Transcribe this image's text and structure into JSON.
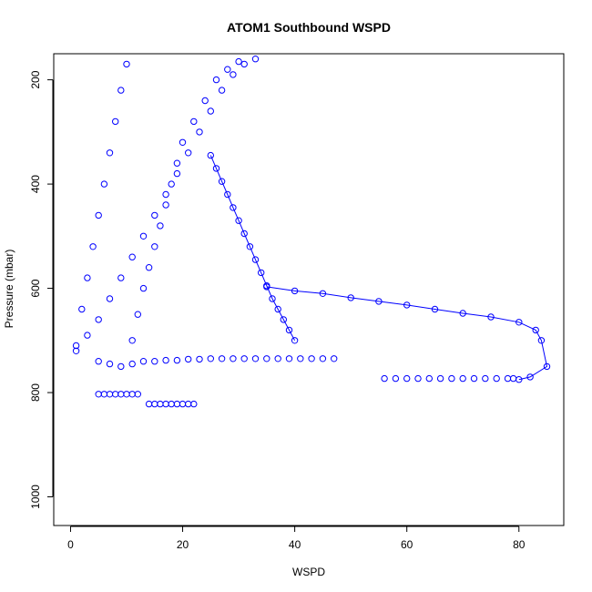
{
  "chart_data": {
    "type": "scatter",
    "title": "ATOM1 Southbound WSPD",
    "xlabel": "WSPD",
    "ylabel": "Pressure (mbar)",
    "xlim": [
      -3,
      88
    ],
    "ylim": [
      1055,
      150
    ],
    "y_reversed": true,
    "x_ticks": [
      "0",
      "20",
      "40",
      "60",
      "80"
    ],
    "y_ticks": [
      "200",
      "400",
      "600",
      "800",
      "1000"
    ],
    "marker": "open-circle",
    "color": "#0000ff",
    "grid": false,
    "legend": "none",
    "series": [
      {
        "style": "points",
        "x": [
          1,
          2,
          3,
          4,
          5,
          6,
          7,
          8,
          9,
          10,
          11,
          12,
          13,
          14,
          15,
          16,
          17,
          18,
          19,
          20,
          22,
          24,
          26,
          28,
          30,
          1,
          3,
          5,
          7,
          9,
          11,
          13,
          15,
          17,
          19,
          21,
          23,
          25,
          27,
          29,
          31,
          33
        ],
        "y": [
          710,
          640,
          580,
          520,
          460,
          400,
          340,
          280,
          220,
          170,
          700,
          650,
          600,
          560,
          520,
          480,
          440,
          400,
          360,
          320,
          280,
          240,
          200,
          180,
          165,
          720,
          690,
          660,
          620,
          580,
          540,
          500,
          460,
          420,
          380,
          340,
          300,
          260,
          220,
          190,
          170,
          160
        ]
      },
      {
        "style": "line-with-points",
        "x": [
          25,
          26,
          27,
          28,
          29,
          30,
          31,
          32,
          33,
          34,
          35,
          36,
          37,
          38,
          39,
          40
        ],
        "y": [
          345,
          370,
          395,
          420,
          445,
          470,
          495,
          520,
          545,
          570,
          595,
          620,
          640,
          660,
          680,
          700
        ]
      },
      {
        "style": "line-with-points",
        "x": [
          35,
          40,
          45,
          50,
          55,
          60,
          65,
          70,
          75,
          80,
          83,
          84,
          85,
          82,
          80
        ],
        "y": [
          597,
          605,
          610,
          618,
          625,
          632,
          640,
          648,
          655,
          665,
          680,
          700,
          750,
          770,
          775
        ]
      },
      {
        "style": "points",
        "x": [
          56,
          58,
          60,
          62,
          64,
          66,
          68,
          70,
          72,
          74,
          76,
          78,
          79
        ],
        "y": [
          773,
          773,
          773,
          773,
          773,
          773,
          773,
          773,
          773,
          773,
          773,
          773,
          773
        ]
      },
      {
        "style": "points",
        "x": [
          5,
          7,
          9,
          11,
          13,
          15,
          17,
          19,
          21,
          23,
          25,
          27,
          29,
          31,
          33,
          35,
          37,
          39,
          41,
          43,
          45,
          47
        ],
        "y": [
          740,
          745,
          750,
          745,
          740,
          740,
          738,
          738,
          736,
          736,
          735,
          735,
          735,
          735,
          735,
          735,
          735,
          735,
          735,
          735,
          735,
          735
        ]
      },
      {
        "style": "points",
        "x": [
          14,
          15,
          16,
          17,
          18,
          19,
          20,
          21,
          22
        ],
        "y": [
          822,
          822,
          822,
          822,
          822,
          822,
          822,
          822,
          822
        ]
      },
      {
        "style": "points",
        "x": [
          5,
          6,
          7,
          8,
          9,
          10,
          11,
          12
        ],
        "y": [
          803,
          803,
          803,
          803,
          803,
          803,
          803,
          803
        ]
      }
    ]
  }
}
